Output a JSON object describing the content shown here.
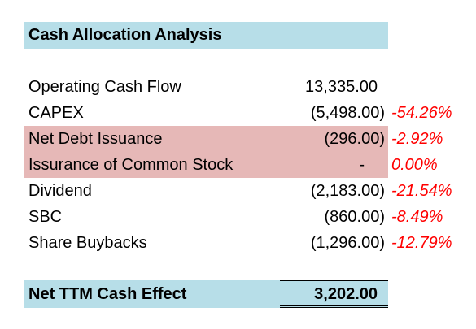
{
  "title": "Cash Allocation Analysis",
  "rows": [
    {
      "label": "Operating Cash Flow",
      "value": "13,335.00",
      "pct": ""
    },
    {
      "label": "CAPEX",
      "value": "(5,498.00)",
      "pct": "-54.26%"
    },
    {
      "label": "Net Debt Issuance",
      "value": "(296.00)",
      "pct": "-2.92%"
    },
    {
      "label": "Issurance of Common Stock",
      "value": "-",
      "pct": "0.00%"
    },
    {
      "label": "Dividend",
      "value": "(2,183.00)",
      "pct": "-21.54%"
    },
    {
      "label": "SBC",
      "value": "(860.00)",
      "pct": "-8.49%"
    },
    {
      "label": "Share Buybacks",
      "value": "(1,296.00)",
      "pct": "-12.79%"
    }
  ],
  "total": {
    "label": "Net TTM Cash Effect",
    "value": "3,202.00"
  },
  "colors": {
    "header_fill": "#b7dee8",
    "highlight_fill": "#e6b8b7",
    "negative_pct_text": "#ff0000"
  }
}
